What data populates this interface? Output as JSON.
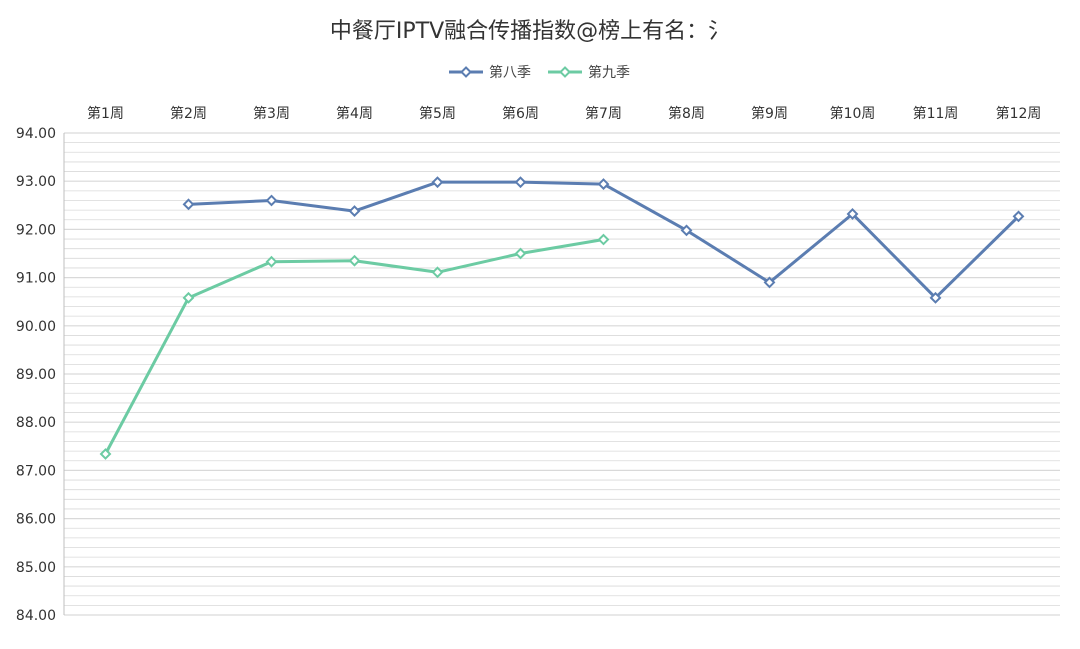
{
  "chart_data": {
    "type": "line",
    "title": "中餐厅IPTV融合传播指数@榜上有名：氵",
    "categories": [
      "第1周",
      "第2周",
      "第3周",
      "第4周",
      "第5周",
      "第6周",
      "第7周",
      "第8周",
      "第9周",
      "第10周",
      "第11周",
      "第12周"
    ],
    "series": [
      {
        "name": "第八季",
        "color": "#5b7db1",
        "values": [
          null,
          92.52,
          92.6,
          92.38,
          92.98,
          92.98,
          92.94,
          91.98,
          90.9,
          92.32,
          90.58,
          92.27
        ]
      },
      {
        "name": "第九季",
        "color": "#6ccba3",
        "values": [
          87.34,
          90.58,
          91.33,
          91.35,
          91.11,
          91.5,
          91.79,
          null,
          null,
          null,
          null,
          null
        ]
      }
    ],
    "ylim": [
      84,
      94
    ],
    "yticks": [
      "84.00",
      "85.00",
      "86.00",
      "87.00",
      "88.00",
      "89.00",
      "90.00",
      "91.00",
      "92.00",
      "93.00",
      "94.00"
    ],
    "ytick_values": [
      84,
      85,
      86,
      87,
      88,
      89,
      90,
      91,
      92,
      93,
      94
    ],
    "minor_grid_step": 0.2,
    "grid": true,
    "x_axis_position": "top",
    "legend_position": "top-center",
    "colors": {
      "grid": "#d9d9d9",
      "axis": "#bfbfbf",
      "text": "#333333"
    }
  }
}
